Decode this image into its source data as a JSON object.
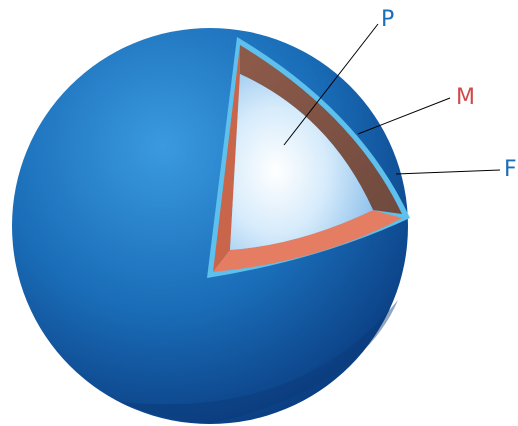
{
  "labels": {
    "p": "P",
    "m": "M",
    "f": "F"
  },
  "colors": {
    "sphere_light": "#2f8fd6",
    "sphere_mid": "#1a6db8",
    "sphere_dark": "#0c4488",
    "shell_outline": "#5ec0ec",
    "middle_layer_side": "#c9654a",
    "middle_layer_top": "#e57d62",
    "middle_layer_back": "#8b5a4c",
    "core_center": "#ffffff",
    "core_edge": "#8cc4ee",
    "label_p": "#1a6db8",
    "label_m": "#d04a4a",
    "label_f": "#1a6db8",
    "leader_line": "#000000"
  }
}
